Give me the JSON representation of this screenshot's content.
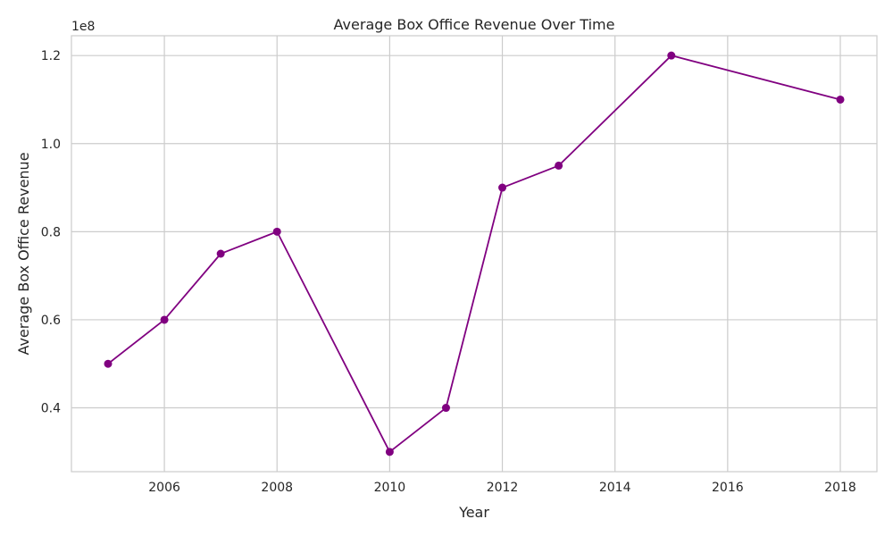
{
  "chart_data": {
    "type": "line",
    "title": "Average Box Office Revenue Over Time",
    "xlabel": "Year",
    "ylabel": "Average Box Office Revenue",
    "y_offset_label": "1e8",
    "series": [
      {
        "x": [
          2005,
          2006,
          2007,
          2008,
          2010,
          2011,
          2012,
          2013,
          2015,
          2018
        ],
        "values": [
          50000000,
          60000000,
          75000000,
          80000000,
          30000000,
          40000000,
          90000000,
          95000000,
          120000000,
          110000000
        ]
      }
    ],
    "xlim": [
      2004.35,
      2018.65
    ],
    "ylim": [
      25500000,
      124500000
    ],
    "x_ticks": [
      2006,
      2008,
      2010,
      2012,
      2014,
      2016,
      2018
    ],
    "x_tick_labels": [
      "2006",
      "2008",
      "2010",
      "2012",
      "2014",
      "2016",
      "2018"
    ],
    "y_ticks": [
      40000000,
      60000000,
      80000000,
      100000000,
      120000000
    ],
    "y_tick_labels": [
      "0.4",
      "0.6",
      "0.8",
      "1.0",
      "1.2"
    ],
    "grid": true,
    "colors": {
      "line": "#800080",
      "marker": "#800080"
    }
  }
}
